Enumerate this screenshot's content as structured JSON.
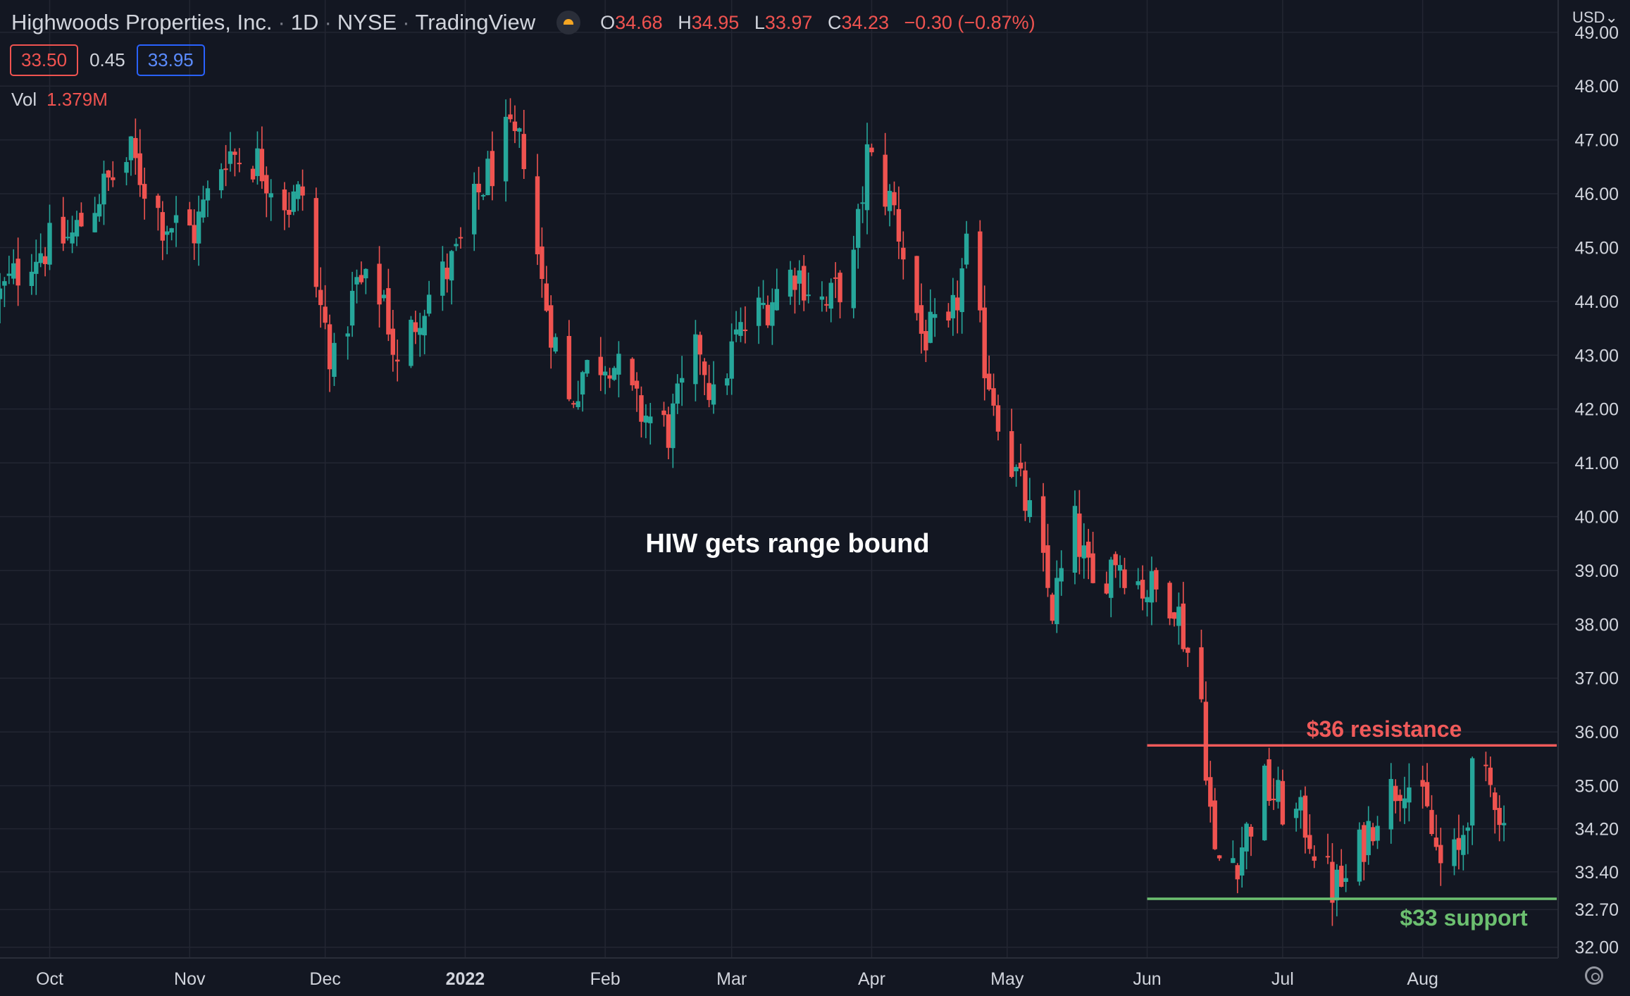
{
  "header": {
    "symbol_name": "Highwoods Properties, Inc.",
    "interval": "1D",
    "exchange": "NYSE",
    "source": "TradingView",
    "open_label": "O",
    "open_value": "34.68",
    "high_label": "H",
    "high_value": "34.95",
    "low_label": "L",
    "low_value": "33.97",
    "close_label": "C",
    "close_value": "34.23",
    "change": "−0.30 (−0.87%)"
  },
  "quote": {
    "bid": "33.50",
    "spread": "0.45",
    "ask": "33.95"
  },
  "volume": {
    "label": "Vol",
    "value": "1.379M"
  },
  "currency_label": "USD",
  "icons": {
    "market_status": "sun-icon",
    "settings": "gear-icon",
    "currency_menu": "chevron-down-icon"
  },
  "colors": {
    "background": "#131722",
    "up": "#26a69a",
    "down": "#ef5350",
    "resistance": "#f05a5a",
    "support": "#6cc070",
    "grid": "#232632"
  },
  "chart_data": {
    "type": "candlestick",
    "title": "",
    "annotation_text": "HIW gets range bound",
    "ylim": [
      31.8,
      49.6
    ],
    "y_ticks": [
      32.0,
      32.7,
      33.4,
      34.2,
      35.0,
      36.0,
      37.0,
      38.0,
      39.0,
      40.0,
      41.0,
      42.0,
      43.0,
      44.0,
      45.0,
      46.0,
      47.0,
      48.0,
      49.0
    ],
    "y_tick_labels": [
      "32.00",
      "32.70",
      "33.40",
      "34.20",
      "35.00",
      "36.00",
      "37.00",
      "38.00",
      "39.00",
      "40.00",
      "41.00",
      "42.00",
      "43.00",
      "44.00",
      "45.00",
      "46.00",
      "47.00",
      "48.00",
      "49.00"
    ],
    "x_start": "2021-09-20",
    "x_end": "2022-08-31",
    "x_ticks": [
      "2021-10-01",
      "2021-11-01",
      "2021-12-01",
      "2022-01-01",
      "2022-02-01",
      "2022-03-01",
      "2022-04-01",
      "2022-05-01",
      "2022-06-01",
      "2022-07-01",
      "2022-08-01"
    ],
    "x_tick_labels": [
      "Oct",
      "Nov",
      "Dec",
      "2022",
      "Feb",
      "Mar",
      "Apr",
      "May",
      "Jun",
      "Jul",
      "Aug"
    ],
    "levels": [
      {
        "label": "$36 resistance",
        "value": 35.75,
        "from": "2022-06-01",
        "to": "2022-08-31"
      },
      {
        "label": "$33 support",
        "value": 32.9,
        "from": "2022-06-01",
        "to": "2022-08-31"
      }
    ],
    "series_anchors": [
      [
        "2021-09-20",
        44.1
      ],
      [
        "2021-09-27",
        44.9
      ],
      [
        "2021-10-06",
        45.2
      ],
      [
        "2021-10-12",
        46.0
      ],
      [
        "2021-10-19",
        46.7
      ],
      [
        "2021-10-26",
        45.5
      ],
      [
        "2021-11-02",
        45.3
      ],
      [
        "2021-11-09",
        46.8
      ],
      [
        "2021-11-16",
        46.6
      ],
      [
        "2021-11-23",
        45.8
      ],
      [
        "2021-11-26",
        46.0
      ],
      [
        "2021-11-29",
        44.2
      ],
      [
        "2021-12-03",
        42.8
      ],
      [
        "2021-12-08",
        44.3
      ],
      [
        "2021-12-14",
        44.1
      ],
      [
        "2021-12-17",
        42.7
      ],
      [
        "2021-12-22",
        43.9
      ],
      [
        "2021-12-30",
        44.8
      ],
      [
        "2022-01-04",
        46.0
      ],
      [
        "2022-01-10",
        47.0
      ],
      [
        "2022-01-14",
        46.8
      ],
      [
        "2022-01-18",
        44.3
      ],
      [
        "2022-01-24",
        42.1
      ],
      [
        "2022-01-27",
        42.7
      ],
      [
        "2022-02-02",
        43.0
      ],
      [
        "2022-02-08",
        42.0
      ],
      [
        "2022-02-15",
        41.6
      ],
      [
        "2022-02-22",
        43.2
      ],
      [
        "2022-02-25",
        42.1
      ],
      [
        "2022-03-02",
        43.3
      ],
      [
        "2022-03-09",
        44.0
      ],
      [
        "2022-03-15",
        44.6
      ],
      [
        "2022-03-22",
        43.9
      ],
      [
        "2022-03-28",
        44.7
      ],
      [
        "2022-03-31",
        46.7
      ],
      [
        "2022-04-06",
        45.7
      ],
      [
        "2022-04-12",
        43.4
      ],
      [
        "2022-04-18",
        43.3
      ],
      [
        "2022-04-22",
        44.9
      ],
      [
        "2022-04-26",
        42.9
      ],
      [
        "2022-05-02",
        41.0
      ],
      [
        "2022-05-06",
        40.0
      ],
      [
        "2022-05-11",
        38.3
      ],
      [
        "2022-05-16",
        39.8
      ],
      [
        "2022-05-20",
        38.6
      ],
      [
        "2022-05-25",
        39.3
      ],
      [
        "2022-05-31",
        38.7
      ],
      [
        "2022-06-07",
        38.5
      ],
      [
        "2022-06-10",
        37.5
      ],
      [
        "2022-06-13",
        36.6
      ],
      [
        "2022-06-14",
        35.5
      ],
      [
        "2022-06-16",
        33.6
      ],
      [
        "2022-06-21",
        33.7
      ],
      [
        "2022-06-27",
        35.0
      ],
      [
        "2022-07-01",
        34.6
      ],
      [
        "2022-07-06",
        34.3
      ],
      [
        "2022-07-12",
        33.1
      ],
      [
        "2022-07-15",
        33.2
      ],
      [
        "2022-07-22",
        34.6
      ],
      [
        "2022-07-28",
        35.2
      ],
      [
        "2022-08-02",
        34.4
      ],
      [
        "2022-08-05",
        33.5
      ],
      [
        "2022-08-09",
        33.7
      ],
      [
        "2022-08-12",
        35.1
      ],
      [
        "2022-08-17",
        34.9
      ],
      [
        "2022-08-19",
        34.2
      ]
    ]
  }
}
